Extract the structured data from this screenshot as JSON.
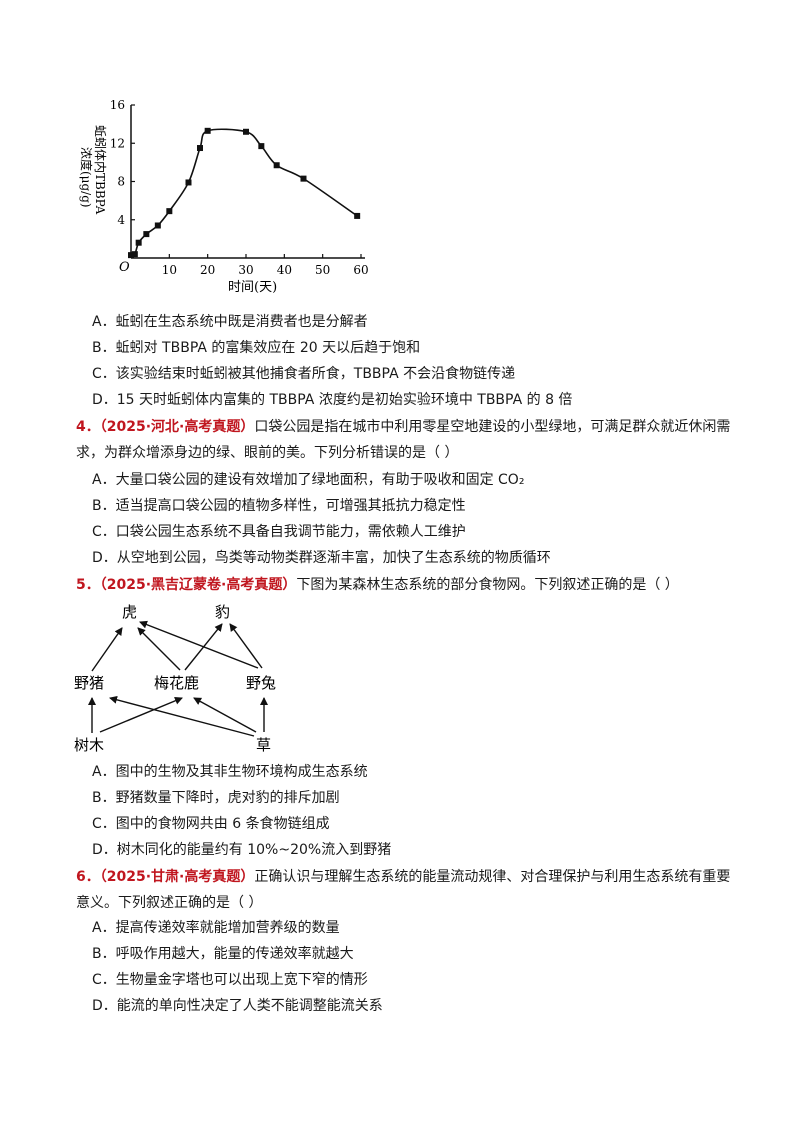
{
  "chart": {
    "ylabel_line1": "蚯蚓体内TBBPA",
    "ylabel_line2": "浓度(μg/g)",
    "xlabel": "时间(天)",
    "origin": "O",
    "xticks": [
      "10",
      "20",
      "30",
      "40",
      "50",
      "60"
    ],
    "yticks": [
      "4",
      "8",
      "12",
      "16"
    ]
  },
  "chart_data": {
    "type": "line",
    "title": "",
    "xlabel": "时间(天)",
    "ylabel": "蚯蚓体内TBBPA 浓度(μg/g)",
    "xlim": [
      0,
      60
    ],
    "ylim": [
      0,
      16
    ],
    "grid": false,
    "x": [
      0,
      1,
      2,
      4,
      7,
      10,
      15,
      18,
      20,
      30,
      34,
      38,
      45,
      59
    ],
    "y": [
      0.3,
      0.4,
      1.6,
      2.5,
      3.4,
      4.9,
      7.9,
      11.5,
      13.3,
      13.2,
      11.7,
      9.7,
      8.3,
      4.4
    ],
    "series": [
      {
        "values": [
          0.3,
          0.4,
          1.6,
          2.5,
          3.4,
          4.9,
          7.9,
          11.5,
          13.3,
          13.2,
          11.7,
          9.7,
          8.3,
          4.4
        ]
      }
    ]
  },
  "q3": {
    "options": [
      "A．蚯蚓在生态系统中既是消费者也是分解者",
      "B．蚯蚓对 TBBPA 的富集效应在 20 天以后趋于饱和",
      "C．该实验结束时蚯蚓被其他捕食者所食，TBBPA 不会沿食物链传递",
      "D．15 天时蚯蚓体内富集的 TBBPA 浓度约是初始实验环境中 TBBPA 的 8 倍"
    ]
  },
  "q4": {
    "num": "4．",
    "source": "（2025·河北·高考真题）",
    "stem_line1": "口袋公园是指在城市中利用零星空地建设的小型绿地，可满足群众就近休闲需",
    "stem_line2": "求，为群众增添身边的绿、眼前的美。下列分析错误的是（    ）",
    "options": [
      "A．大量口袋公园的建设有效增加了绿地面积，有助于吸收和固定 CO₂",
      "B．适当提高口袋公园的植物多样性，可增强其抵抗力稳定性",
      "C．口袋公园生态系统不具备自我调节能力，需依赖人工维护",
      "D．从空地到公园，鸟类等动物类群逐渐丰富，加快了生态系统的物质循环"
    ]
  },
  "q5": {
    "num": "5．",
    "source": "（2025·黑吉辽蒙卷·高考真题）",
    "stem": "下图为某森林生态系统的部分食物网。下列叙述正确的是（    ）",
    "web": {
      "tiger": "虎",
      "leopard": "豹",
      "boar": "野猪",
      "deer": "梅花鹿",
      "hare": "野兔",
      "tree": "树木",
      "grass": "草"
    },
    "options": [
      "A．图中的生物及其非生物环境构成生态系统",
      "B．野猪数量下降时，虎对豹的排斥加剧",
      "C．图中的食物网共由 6 条食物链组成",
      "D．树木同化的能量约有 10%~20%流入到野猪"
    ]
  },
  "q6": {
    "num": "6．",
    "source": "（2025·甘肃·高考真题）",
    "stem_line1": "正确认识与理解生态系统的能量流动规律、对合理保护与利用生态系统有重要",
    "stem_line2": "意义。下列叙述正确的是（    ）",
    "options": [
      "A．提高传递效率就能增加营养级的数量",
      "B．呼吸作用越大，能量的传递效率就越大",
      "C．生物量金字塔也可以出现上宽下窄的情形",
      "D．能流的单向性决定了人类不能调整能流关系"
    ]
  }
}
